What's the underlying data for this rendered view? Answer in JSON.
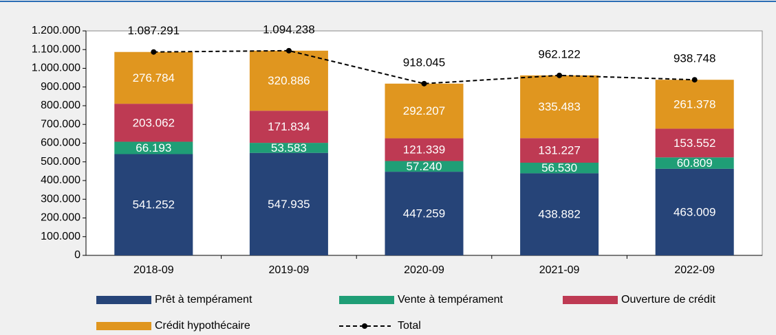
{
  "chart_data": {
    "type": "bar",
    "stacked": true,
    "categories": [
      "2018-09",
      "2019-09",
      "2020-09",
      "2021-09",
      "2022-09"
    ],
    "series": [
      {
        "name": "Prêt à tempérament",
        "color": "#264478",
        "values": [
          541252,
          547935,
          447259,
          438882,
          463009
        ],
        "value_labels": [
          "541.252",
          "547.935",
          "447.259",
          "438.882",
          "463.009"
        ]
      },
      {
        "name": "Vente à tempérament",
        "color": "#1f9e76",
        "values": [
          66193,
          53583,
          57240,
          56530,
          60809
        ],
        "value_labels": [
          "66.193",
          "53.583",
          "57.240",
          "56.530",
          "60.809"
        ]
      },
      {
        "name": "Ouverture de crédit",
        "color": "#be3a53",
        "values": [
          203062,
          171834,
          121339,
          131227,
          153552
        ],
        "value_labels": [
          "203.062",
          "171.834",
          "121.339",
          "131.227",
          "153.552"
        ]
      },
      {
        "name": "Crédit hypothécaire",
        "color": "#e0961f",
        "values": [
          276784,
          320886,
          292207,
          335483,
          261378
        ],
        "value_labels": [
          "276.784",
          "320.886",
          "292.207",
          "335.483",
          "261.378"
        ]
      },
      {
        "name": "Total",
        "type": "line",
        "color": "#000000",
        "values": [
          1087291,
          1094238,
          918045,
          962122,
          938748
        ],
        "value_labels": [
          "1.087.291",
          "1.094.238",
          "918.045",
          "962.122",
          "938.748"
        ]
      }
    ],
    "ylim": [
      0,
      1200000
    ],
    "yticks": [
      0,
      {
        "value": 100000,
        "label": "100.000"
      },
      {
        "value": 200000,
        "label": "200.000"
      },
      {
        "value": 300000,
        "label": "300.000"
      },
      {
        "value": 400000,
        "label": "400.000"
      },
      {
        "value": 500000,
        "label": "500.000"
      },
      {
        "value": 600000,
        "label": "600.000"
      },
      {
        "value": 700000,
        "label": "700.000"
      },
      {
        "value": 800000,
        "label": "800.000"
      },
      {
        "value": 900000,
        "label": "900.000"
      },
      {
        "value": 1000000,
        "label": "1.000.000"
      },
      {
        "value": 1100000,
        "label": "1.100.000"
      },
      {
        "value": 1200000,
        "label": "1.200.000"
      }
    ],
    "grid": false,
    "legend": "bottom"
  }
}
